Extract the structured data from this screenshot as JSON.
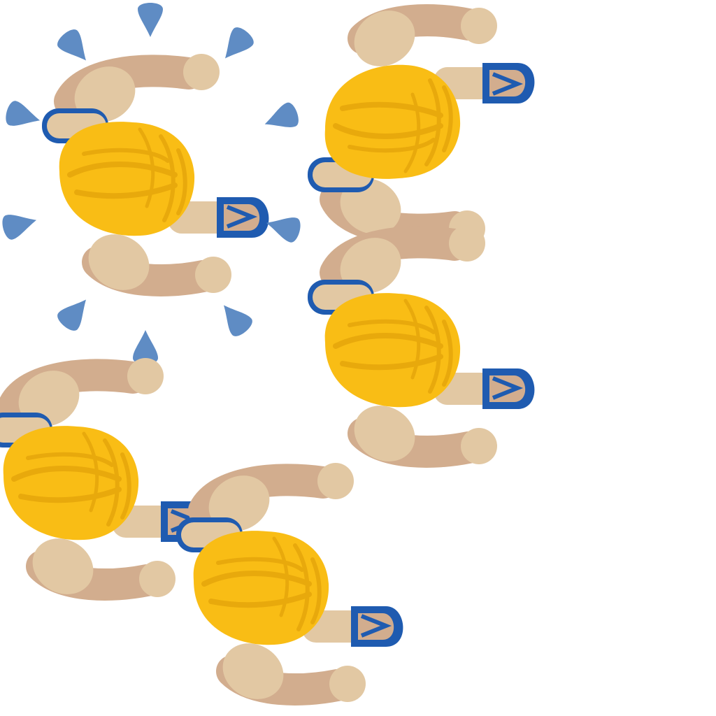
{
  "scene": {
    "description_label": "",
    "background_color": "#ffffff"
  },
  "colors": {
    "hair": "#f9bd15",
    "hair_shade": "#e8a90c",
    "skin_light": "#e2c8a3",
    "skin_dark": "#d2ad8e",
    "sandal": "#1f5bb0",
    "sandal_strap": "#1f5bb0",
    "splash": "#5f8cc4"
  },
  "characters": [
    {
      "id": "walker-1",
      "pose": "left-foot-up",
      "splashing": true
    },
    {
      "id": "walker-2",
      "pose": "right-foot-up",
      "splashing": false
    },
    {
      "id": "walker-3",
      "pose": "left-foot-up",
      "splashing": false
    },
    {
      "id": "walker-4",
      "pose": "left-foot-up",
      "splashing": false
    },
    {
      "id": "walker-5",
      "pose": "left-foot-up",
      "splashing": false
    }
  ],
  "icons": {
    "character": "top-down-walker-icon",
    "splash": "water-drop-icon"
  }
}
